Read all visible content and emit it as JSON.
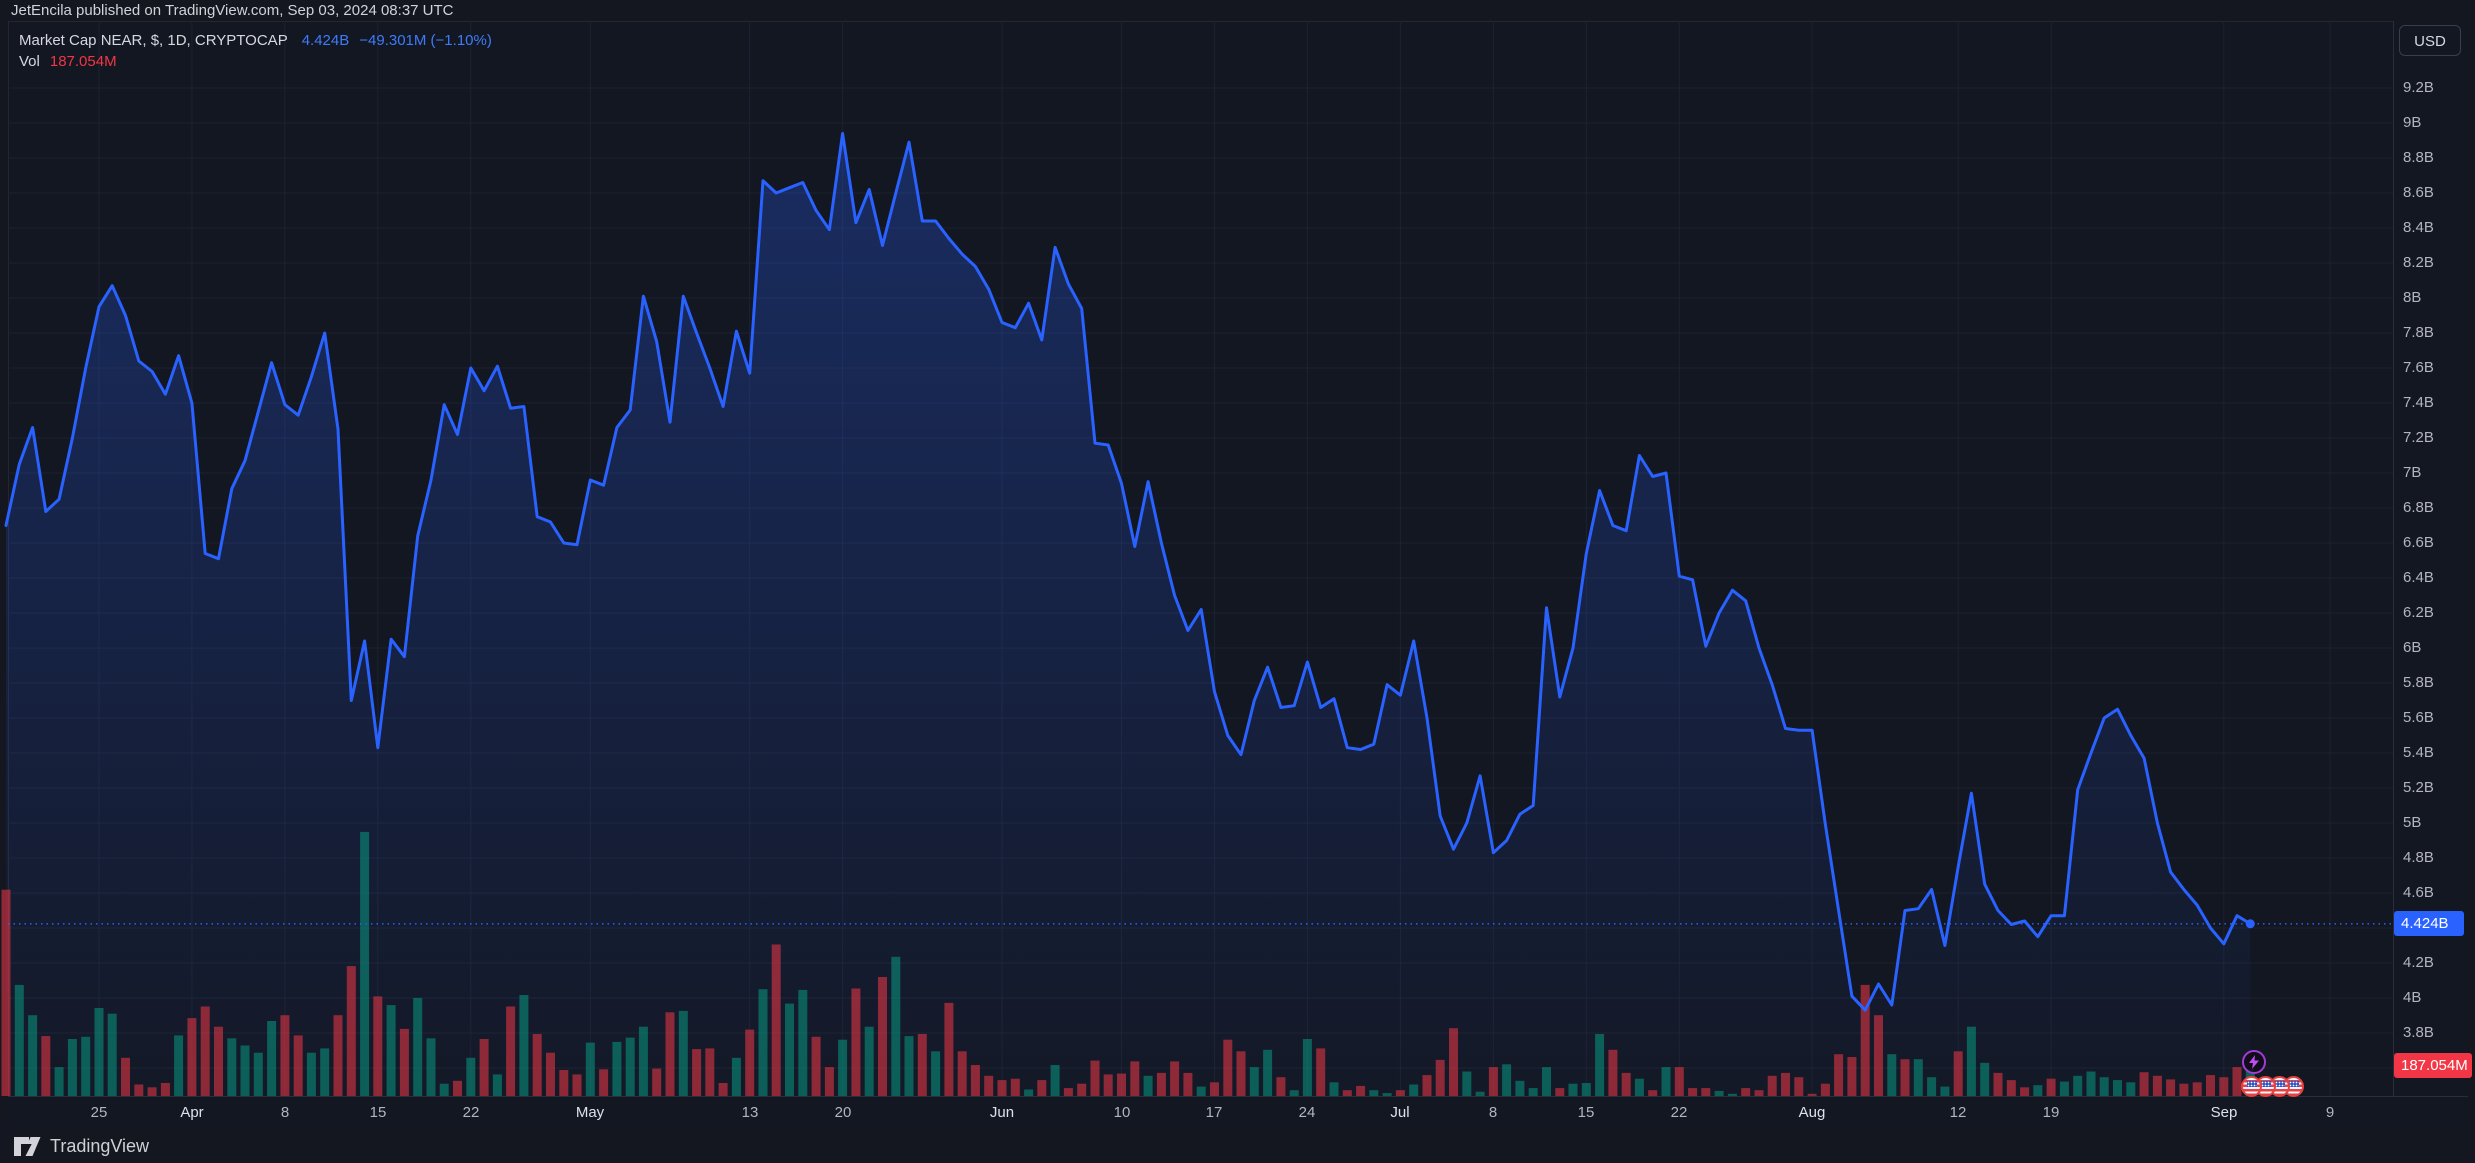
{
  "header": {
    "publish_line": "JetEncila published on TradingView.com, Sep 03, 2024 08:37 UTC"
  },
  "legend": {
    "title": "Market Cap NEAR, $, 1D, CRYPTOCAP",
    "value": "4.424B",
    "change": "−49.301M (−1.10%)",
    "vol_label": "Vol",
    "vol_value": "187.054M"
  },
  "price_axis": {
    "currency_button": "USD",
    "last_price_badge": "4.424B",
    "volume_badge": "187.054M",
    "labels": [
      {
        "label": "9.2B",
        "value": 9.2
      },
      {
        "label": "9B",
        "value": 9.0
      },
      {
        "label": "8.8B",
        "value": 8.8
      },
      {
        "label": "8.6B",
        "value": 8.6
      },
      {
        "label": "8.4B",
        "value": 8.4
      },
      {
        "label": "8.2B",
        "value": 8.2
      },
      {
        "label": "8B",
        "value": 8.0
      },
      {
        "label": "7.8B",
        "value": 7.8
      },
      {
        "label": "7.6B",
        "value": 7.6
      },
      {
        "label": "7.4B",
        "value": 7.4
      },
      {
        "label": "7.2B",
        "value": 7.2
      },
      {
        "label": "7B",
        "value": 7.0
      },
      {
        "label": "6.8B",
        "value": 6.8
      },
      {
        "label": "6.6B",
        "value": 6.6
      },
      {
        "label": "6.4B",
        "value": 6.4
      },
      {
        "label": "6.2B",
        "value": 6.2
      },
      {
        "label": "6B",
        "value": 6.0
      },
      {
        "label": "5.8B",
        "value": 5.8
      },
      {
        "label": "5.6B",
        "value": 5.6
      },
      {
        "label": "5.4B",
        "value": 5.4
      },
      {
        "label": "5.2B",
        "value": 5.2
      },
      {
        "label": "5B",
        "value": 5.0
      },
      {
        "label": "4.8B",
        "value": 4.8
      },
      {
        "label": "4.6B",
        "value": 4.6
      },
      {
        "label": "4.2B",
        "value": 4.2
      },
      {
        "label": "4B",
        "value": 4.0
      },
      {
        "label": "3.8B",
        "value": 3.8
      }
    ]
  },
  "time_axis": {
    "ticks": [
      {
        "label": "25",
        "day": 7,
        "month": false
      },
      {
        "label": "Apr",
        "day": 14,
        "month": true
      },
      {
        "label": "8",
        "day": 21,
        "month": false
      },
      {
        "label": "15",
        "day": 28,
        "month": false
      },
      {
        "label": "22",
        "day": 35,
        "month": false
      },
      {
        "label": "May",
        "day": 44,
        "month": true
      },
      {
        "label": "13",
        "day": 56,
        "month": false
      },
      {
        "label": "20",
        "day": 63,
        "month": false
      },
      {
        "label": "Jun",
        "day": 75,
        "month": true
      },
      {
        "label": "10",
        "day": 84,
        "month": false
      },
      {
        "label": "17",
        "day": 91,
        "month": false
      },
      {
        "label": "24",
        "day": 98,
        "month": false
      },
      {
        "label": "Jul",
        "day": 105,
        "month": true
      },
      {
        "label": "8",
        "day": 112,
        "month": false
      },
      {
        "label": "15",
        "day": 119,
        "month": false
      },
      {
        "label": "22",
        "day": 126,
        "month": false
      },
      {
        "label": "Aug",
        "day": 136,
        "month": true
      },
      {
        "label": "12",
        "day": 147,
        "month": false
      },
      {
        "label": "19",
        "day": 154,
        "month": false
      },
      {
        "label": "Sep",
        "day": 167,
        "month": true
      },
      {
        "label": "9",
        "day": 175,
        "month": false
      }
    ]
  },
  "footer": {
    "brand": "TradingView"
  },
  "stickers": {
    "bolt": "lightning",
    "flags": 4
  },
  "colors": {
    "line_blue": "#2962FF",
    "vol_up": "#089981",
    "vol_down": "#F23645",
    "badge_blue": "#2962FF",
    "badge_red": "#F23645",
    "text": "#D1D4DC",
    "text_dim": "#B2B5BE"
  },
  "chart_data": {
    "type": "line",
    "title": "Market Cap NEAR, CRYPTOCAP, 1D",
    "interval": "1D",
    "start_date": "2024-03-18",
    "end_date": "2024-09-03",
    "ylabel": "Market cap (USD billions)",
    "ylim": [
      3.6,
      9.4
    ],
    "legend_position": "top-left",
    "grid": true,
    "last_value": 4.424,
    "line": [
      6.7,
      7.05,
      7.26,
      6.78,
      6.85,
      7.2,
      7.6,
      7.95,
      8.07,
      7.9,
      7.64,
      7.58,
      7.45,
      7.67,
      7.4,
      6.54,
      6.51,
      6.91,
      7.07,
      7.35,
      7.63,
      7.39,
      7.33,
      7.55,
      7.8,
      7.25,
      5.7,
      6.04,
      5.43,
      6.05,
      5.95,
      6.64,
      6.96,
      7.39,
      7.22,
      7.6,
      7.47,
      7.61,
      7.37,
      7.38,
      6.75,
      6.72,
      6.6,
      6.59,
      6.96,
      6.93,
      7.26,
      7.36,
      8.01,
      7.75,
      7.29,
      8.01,
      7.8,
      7.6,
      7.38,
      7.81,
      7.57,
      8.67,
      8.6,
      8.63,
      8.66,
      8.5,
      8.39,
      8.94,
      8.43,
      8.62,
      8.3,
      8.6,
      8.89,
      8.44,
      8.44,
      8.34,
      8.25,
      8.18,
      8.05,
      7.86,
      7.83,
      7.97,
      7.76,
      8.29,
      8.08,
      7.94,
      7.17,
      7.16,
      6.94,
      6.58,
      6.95,
      6.6,
      6.3,
      6.1,
      6.22,
      5.75,
      5.5,
      5.39,
      5.7,
      5.89,
      5.66,
      5.67,
      5.92,
      5.66,
      5.71,
      5.43,
      5.42,
      5.45,
      5.79,
      5.73,
      6.04,
      5.6,
      5.04,
      4.85,
      5.0,
      5.27,
      4.83,
      4.9,
      5.05,
      5.1,
      6.23,
      5.72,
      6.0,
      6.54,
      6.9,
      6.7,
      6.67,
      7.1,
      6.98,
      7.0,
      6.41,
      6.39,
      6.01,
      6.2,
      6.33,
      6.27,
      6.0,
      5.79,
      5.54,
      5.53,
      5.53,
      4.99,
      4.5,
      4.01,
      3.93,
      4.08,
      3.96,
      4.5,
      4.51,
      4.62,
      4.3,
      4.75,
      5.17,
      4.65,
      4.5,
      4.42,
      4.44,
      4.35,
      4.47,
      4.47,
      5.19,
      5.4,
      5.6,
      5.65,
      5.5,
      5.37,
      5.0,
      4.72,
      4.62,
      4.53,
      4.4,
      4.31,
      4.47,
      4.424
    ],
    "volume_unit": "USD millions",
    "volume": [
      1430,
      770,
      560,
      415,
      200,
      395,
      410,
      610,
      570,
      265,
      80,
      60,
      90,
      420,
      540,
      620,
      480,
      400,
      350,
      300,
      520,
      560,
      420,
      300,
      330,
      560,
      900,
      1830,
      690,
      630,
      465,
      680,
      400,
      85,
      105,
      265,
      395,
      150,
      620,
      700,
      430,
      300,
      180,
      150,
      370,
      185,
      375,
      405,
      480,
      190,
      580,
      590,
      325,
      330,
      90,
      265,
      460,
      740,
      1050,
      640,
      735,
      410,
      200,
      390,
      745,
      480,
      825,
      965,
      415,
      430,
      310,
      645,
      310,
      215,
      140,
      110,
      120,
      45,
      110,
      215,
      55,
      85,
      245,
      150,
      155,
      240,
      140,
      160,
      240,
      160,
      65,
      95,
      390,
      310,
      200,
      320,
      130,
      40,
      395,
      330,
      95,
      40,
      70,
      40,
      20,
      40,
      80,
      145,
      250,
      470,
      170,
      30,
      200,
      220,
      105,
      55,
      200,
      55,
      85,
      90,
      430,
      320,
      160,
      120,
      40,
      200,
      200,
      55,
      55,
      35,
      15,
      55,
      40,
      140,
      160,
      130,
      15,
      85,
      290,
      270,
      770,
      560,
      290,
      255,
      255,
      130,
      65,
      310,
      480,
      230,
      160,
      110,
      60,
      75,
      120,
      100,
      140,
      170,
      130,
      110,
      95,
      165,
      140,
      115,
      85,
      95,
      145,
      130,
      200,
      187
    ],
    "volume_colors": "rggrgggggrrrrgrrrggggrrggrrgrgrgggrgrgrgrrrrgrgggrrgrrrgrgrggrrgrgrggrgrrrrrrgrgrrrrrrgrrrgrrrggrggrgrrggrgrrrggrggggrgggrrgrgrrrggrrrrrrrrrrrgrgggrggrrrgrggggggrrrrrrrrgr"
  }
}
